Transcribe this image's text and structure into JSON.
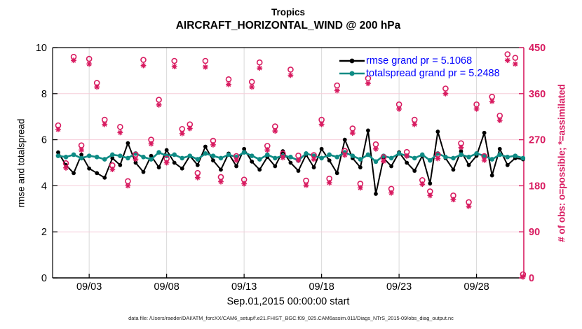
{
  "header": {
    "title_line1": "Tropics",
    "title_line2": "AIRCRAFT_HORIZONTAL_WIND @ 200 hPa"
  },
  "axes": {
    "ylabel_left": "rmse and totalspread",
    "ylabel_right": "# of obs: o=possible; *=assimilated",
    "xlabel": "Sep.01,2015 00:00:00 start",
    "yticks_left": [
      0,
      2,
      4,
      6,
      8,
      10
    ],
    "yticks_right": [
      0,
      90,
      180,
      270,
      360,
      450
    ],
    "xtick_days": [
      3,
      8,
      13,
      18,
      23,
      28
    ],
    "xtick_labels": [
      "09/03",
      "09/08",
      "09/13",
      "09/18",
      "09/23",
      "09/28"
    ]
  },
  "legend": {
    "items": [
      {
        "label": "rmse grand pr = 5.1068",
        "series": "rmse"
      },
      {
        "label": "totalspread grand pr = 5.2488",
        "series": "totalspread"
      }
    ]
  },
  "footer": {
    "datafile": "data file: /Users/raeder/DAI/ATM_forcXX/CAM6_setup/f.e21.FHIST_BGC.f09_025.CAM6assim.011/Diags_NTrS_2015-09/obs_diag_output.nc"
  },
  "colors": {
    "pink": "#d81b60",
    "grid_h_pink": "#f6cdd9",
    "grid_v_gray": "#d9d9d9",
    "teal": "#0e8b84",
    "black": "#000000",
    "legend_text_blue": "#0000ff"
  },
  "chart_data": {
    "type": "line",
    "title": "Tropics — AIRCRAFT_HORIZONTAL_WIND @ 200 hPa",
    "xlabel": "Sep.01,2015 00:00:00 start",
    "ylabel_left": "rmse and totalspread",
    "ylabel_right": "# of obs: o=possible; *=assimilated",
    "xlim": [
      0.64,
      31.05
    ],
    "ylim_left": [
      0,
      10
    ],
    "ylim_right": [
      0,
      450
    ],
    "grid": true,
    "legend_position": "top-right-inside",
    "x_days_september": [
      1,
      1.5,
      2,
      2.5,
      3,
      3.5,
      4,
      4.5,
      5,
      5.5,
      6,
      6.5,
      7,
      7.5,
      8,
      8.5,
      9,
      9.5,
      10,
      10.5,
      11,
      11.5,
      12,
      12.5,
      13,
      13.5,
      14,
      14.5,
      15,
      15.5,
      16,
      16.5,
      17,
      17.5,
      18,
      18.5,
      19,
      19.5,
      20,
      20.5,
      21,
      21.5,
      22,
      22.5,
      23,
      23.5,
      24,
      24.5,
      25,
      25.5,
      26,
      26.5,
      27,
      27.5,
      28,
      28.5,
      29,
      29.5,
      30,
      30.5,
      31
    ],
    "series": [
      {
        "name": "rmse",
        "axis": "left",
        "grand_value": 5.1068,
        "values": [
          5.45,
          4.9,
          4.55,
          5.35,
          4.75,
          4.55,
          4.35,
          5.2,
          4.9,
          5.85,
          5.0,
          4.6,
          5.3,
          4.8,
          5.55,
          5.0,
          4.75,
          5.3,
          4.9,
          5.7,
          5.1,
          4.7,
          5.4,
          4.85,
          5.6,
          5.05,
          4.7,
          5.25,
          4.85,
          5.5,
          5.0,
          4.65,
          5.35,
          4.8,
          5.6,
          5.1,
          4.55,
          6.0,
          5.2,
          4.8,
          6.4,
          3.65,
          5.2,
          4.85,
          5.45,
          5.0,
          4.65,
          5.3,
          4.1,
          6.35,
          5.2,
          4.7,
          5.5,
          4.9,
          5.3,
          6.3,
          4.45,
          5.6,
          4.9,
          5.2,
          5.15
        ]
      },
      {
        "name": "totalspread",
        "axis": "left",
        "grand_value": 5.2488,
        "values": [
          5.3,
          5.25,
          5.35,
          5.2,
          5.3,
          5.25,
          5.15,
          5.35,
          5.3,
          5.2,
          5.4,
          5.25,
          5.15,
          5.45,
          5.3,
          5.35,
          5.2,
          5.3,
          5.15,
          5.4,
          5.3,
          5.2,
          5.35,
          5.25,
          5.45,
          5.3,
          5.15,
          5.35,
          5.2,
          5.3,
          5.25,
          5.1,
          5.4,
          5.3,
          5.2,
          5.35,
          5.25,
          5.45,
          5.3,
          5.15,
          5.35,
          5.05,
          5.3,
          5.2,
          5.4,
          5.3,
          5.2,
          5.35,
          5.1,
          5.4,
          5.25,
          5.2,
          5.35,
          5.25,
          5.4,
          5.3,
          5.15,
          5.35,
          5.25,
          5.3,
          5.2
        ]
      },
      {
        "name": "n_possible",
        "axis": "right",
        "marker": "o",
        "values": [
          298,
          224,
          432,
          259,
          428,
          381,
          309,
          220,
          295,
          189,
          241,
          426,
          270,
          348,
          233,
          424,
          291,
          300,
          205,
          424,
          268,
          197,
          388,
          238,
          192,
          383,
          421,
          258,
          296,
          243,
          407,
          239,
          190,
          240,
          309,
          194,
          376,
          248,
          292,
          184,
          390,
          261,
          236,
          174,
          339,
          246,
          309,
          191,
          169,
          241,
          370,
          161,
          263,
          148,
          339,
          238,
          354,
          317,
          437,
          430,
          7
        ]
      },
      {
        "name": "n_assimilated",
        "axis": "right",
        "marker": "*",
        "values": [
          290,
          215,
          425,
          250,
          418,
          373,
          300,
          212,
          284,
          180,
          232,
          415,
          262,
          338,
          225,
          413,
          282,
          292,
          196,
          412,
          260,
          188,
          378,
          230,
          184,
          373,
          410,
          250,
          287,
          235,
          396,
          230,
          181,
          232,
          300,
          186,
          366,
          240,
          283,
          176,
          380,
          252,
          228,
          166,
          330,
          238,
          300,
          183,
          161,
          233,
          360,
          153,
          255,
          140,
          330,
          230,
          345,
          308,
          425,
          418,
          2
        ]
      }
    ]
  }
}
